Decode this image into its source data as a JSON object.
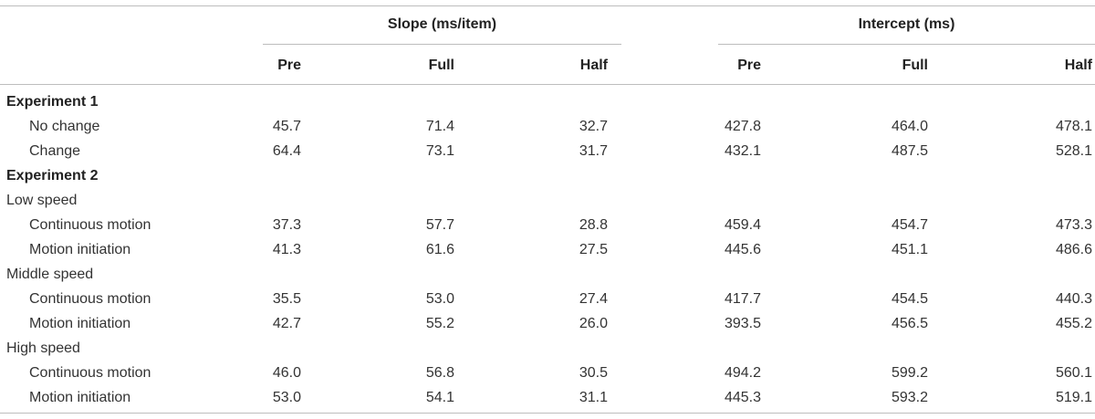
{
  "table": {
    "group_headers": [
      "Slope (ms/item)",
      "Intercept (ms)"
    ],
    "subheaders": [
      "Pre",
      "Full",
      "Half",
      "Pre",
      "Full",
      "Half"
    ],
    "rows": [
      {
        "label": "Experiment 1",
        "kind": "section",
        "values": []
      },
      {
        "label": "No change",
        "kind": "item",
        "values": [
          "45.7",
          "71.4",
          "32.7",
          "427.8",
          "464.0",
          "478.1"
        ]
      },
      {
        "label": "Change",
        "kind": "item",
        "values": [
          "64.4",
          "73.1",
          "31.7",
          "432.1",
          "487.5",
          "528.1"
        ]
      },
      {
        "label": "Experiment 2",
        "kind": "section",
        "values": []
      },
      {
        "label": "Low speed",
        "kind": "group",
        "values": []
      },
      {
        "label": "Continuous motion",
        "kind": "item",
        "values": [
          "37.3",
          "57.7",
          "28.8",
          "459.4",
          "454.7",
          "473.3"
        ]
      },
      {
        "label": "Motion initiation",
        "kind": "item",
        "values": [
          "41.3",
          "61.6",
          "27.5",
          "445.6",
          "451.1",
          "486.6"
        ]
      },
      {
        "label": "Middle speed",
        "kind": "group",
        "values": []
      },
      {
        "label": "Continuous motion",
        "kind": "item",
        "values": [
          "35.5",
          "53.0",
          "27.4",
          "417.7",
          "454.5",
          "440.3"
        ]
      },
      {
        "label": "Motion initiation",
        "kind": "item",
        "values": [
          "42.7",
          "55.2",
          "26.0",
          "393.5",
          "456.5",
          "455.2"
        ]
      },
      {
        "label": "High speed",
        "kind": "group",
        "values": []
      },
      {
        "label": "Continuous motion",
        "kind": "item",
        "values": [
          "46.0",
          "56.8",
          "30.5",
          "494.2",
          "599.2",
          "560.1"
        ]
      },
      {
        "label": "Motion initiation",
        "kind": "item",
        "values": [
          "53.0",
          "54.1",
          "31.1",
          "445.3",
          "593.2",
          "519.1"
        ]
      }
    ]
  }
}
